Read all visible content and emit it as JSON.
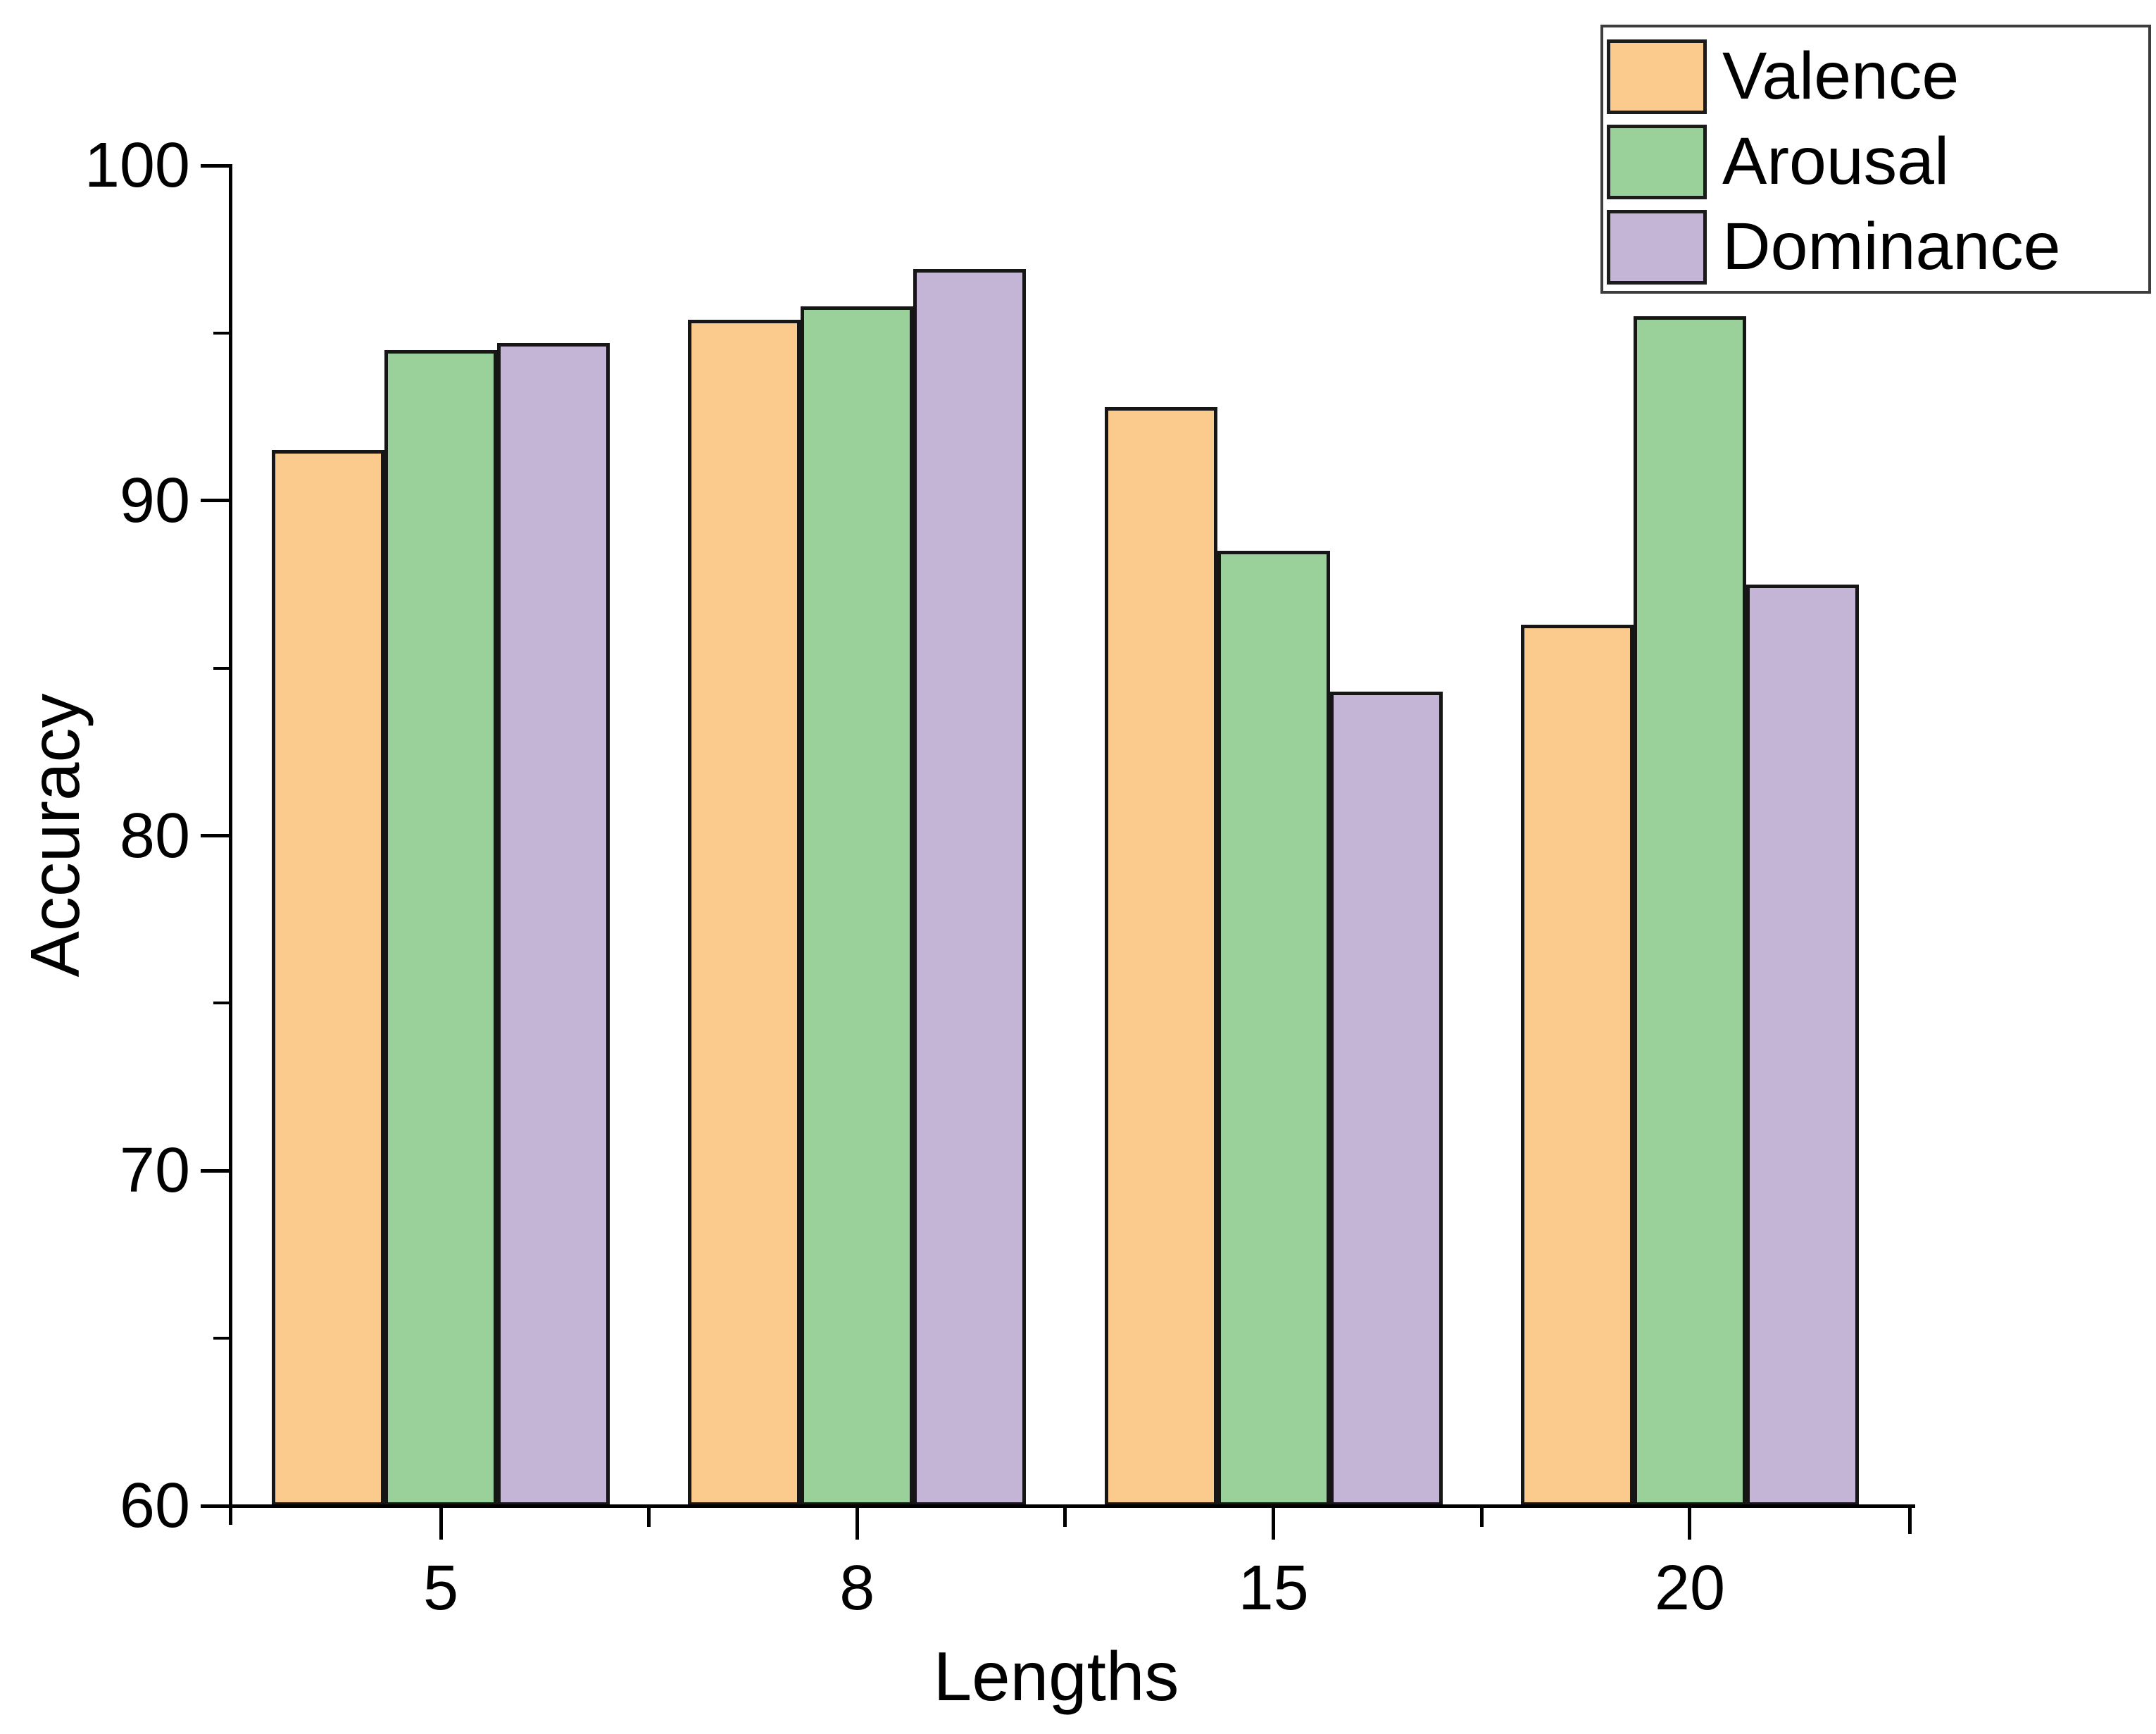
{
  "chart_data": {
    "type": "bar",
    "title": "",
    "xlabel": "Lengths",
    "ylabel": "Accuracy",
    "categories": [
      "5",
      "8",
      "15",
      "20"
    ],
    "series": [
      {
        "name": "Valence",
        "color": "#FBCB8E",
        "values": [
          91.5,
          95.4,
          92.8,
          86.3
        ]
      },
      {
        "name": "Arousal",
        "color": "#9AD19A",
        "values": [
          94.5,
          95.8,
          88.5,
          95.5
        ]
      },
      {
        "name": "Dominance",
        "color": "#C4B5D7",
        "values": [
          94.7,
          96.9,
          84.3,
          87.5
        ]
      }
    ],
    "ylim": [
      60,
      100
    ],
    "y_major_ticks": [
      60,
      70,
      80,
      90,
      100
    ],
    "y_minor_ticks": [
      65,
      75,
      85,
      95
    ],
    "grid": false,
    "legend_position": "top-right",
    "bar_border_color": "#161616",
    "axis_color": "#000000",
    "background_color": "#FFFFFF"
  }
}
